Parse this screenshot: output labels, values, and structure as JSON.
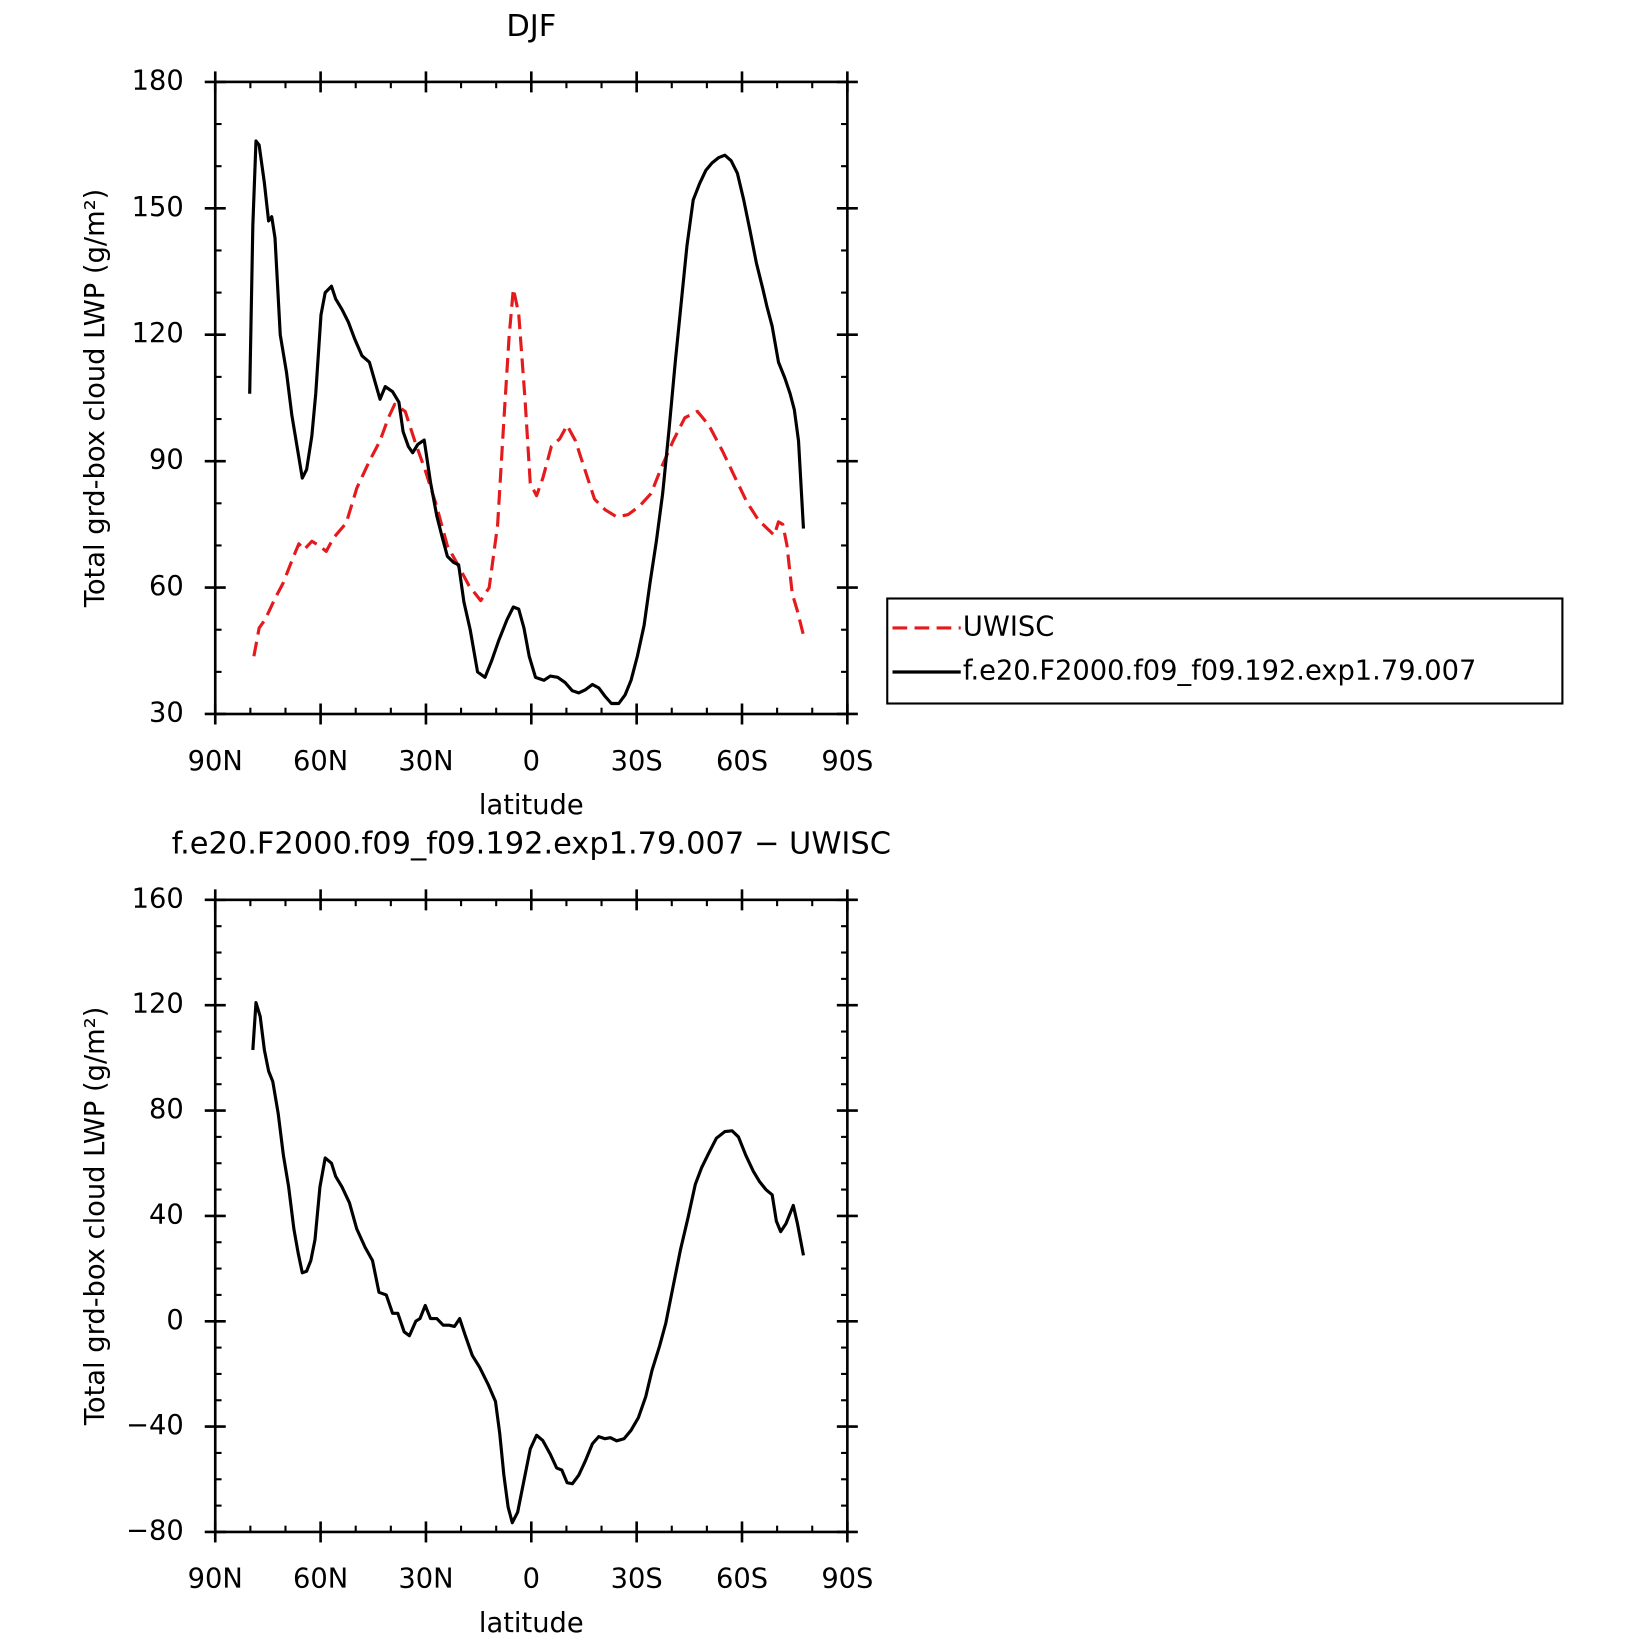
{
  "chart_data": [
    {
      "type": "line",
      "title": "DJF",
      "xlabel": "latitude",
      "ylabel": "Total grd-box cloud LWP (g/m²)",
      "xlim": [
        90,
        -90
      ],
      "xticks": [
        {
          "value": 90,
          "label": "90N"
        },
        {
          "value": 60,
          "label": "60N"
        },
        {
          "value": 30,
          "label": "30N"
        },
        0,
        {
          "value": -30,
          "label": "30S"
        },
        {
          "value": -60,
          "label": "60S"
        },
        {
          "value": -90,
          "label": "90S"
        }
      ],
      "ylim": [
        30,
        180
      ],
      "yticks": [
        30,
        60,
        90,
        120,
        150,
        180
      ],
      "legend": "right",
      "series": [
        {
          "name": "UWISC",
          "color": "#e41a1c",
          "linestyle": "dashed",
          "x": [
            79,
            77.5,
            75.8,
            73,
            70.7,
            67.7,
            66.2,
            64.7,
            62.5,
            60.5,
            58.4,
            56.3,
            52.7,
            49.7,
            46.1,
            43.1,
            40.7,
            38.9,
            35.9,
            33.2,
            30.2,
            27.2,
            23.9,
            20.6,
            17.7,
            14.4,
            12,
            9.6,
            7.8,
            6.3,
            5.1,
            3.6,
            1.8,
            0.3,
            -1.5,
            -3.3,
            -5.7,
            -8.1,
            -10.2,
            -12.6,
            -15,
            -18,
            -21,
            -24.3,
            -27.5,
            -30.8,
            -34.1,
            -37.1,
            -40.4,
            -43.7,
            -47.3,
            -50.6,
            -54.5,
            -58.1,
            -61.4,
            -64.7,
            -67.7,
            -69.2,
            -70.4,
            -71.6,
            -72.8,
            -74.3,
            -75.8,
            -77.5
          ],
          "values": [
            43.7,
            50.4,
            52.4,
            57.4,
            61,
            67.4,
            70.4,
            69,
            71,
            70,
            68.6,
            71.8,
            75.3,
            83.6,
            90,
            94.8,
            100.3,
            103.5,
            101.8,
            94.8,
            87.8,
            80,
            69.9,
            64.9,
            60.4,
            56.9,
            60,
            74.8,
            99.8,
            119.7,
            130.9,
            125,
            104.8,
            84.8,
            81.8,
            86,
            93.5,
            95.3,
            98.5,
            94.8,
            88.6,
            81,
            78.5,
            76.8,
            77.3,
            79.3,
            82.3,
            88.6,
            94.8,
            100.3,
            101.8,
            98.5,
            92.3,
            86,
            80.3,
            76,
            73.6,
            72.4,
            75.6,
            75,
            70,
            58.6,
            54.4,
            48.7
          ]
        },
        {
          "name": "f.e20.F2000.f09_f09.192.exp1.79.007",
          "color": "#000000",
          "linestyle": "solid",
          "x": [
            80.2,
            79.3,
            78.4,
            77.5,
            76,
            74.8,
            73.9,
            73,
            71.5,
            69.7,
            68.2,
            66.7,
            65.2,
            64,
            62.5,
            61.4,
            59.9,
            58.7,
            56.9,
            55.7,
            53.9,
            52.1,
            50.3,
            48.2,
            46.1,
            44.9,
            43.1,
            41.6,
            39.5,
            37.7,
            36.5,
            35,
            33.8,
            32.3,
            30.5,
            28.7,
            26.9,
            25.4,
            23.9,
            22.2,
            20.7,
            19.2,
            17.4,
            15.3,
            13.2,
            11.4,
            9.3,
            6.9,
            5.1,
            3.6,
            2.1,
            0.6,
            -1.2,
            -3.6,
            -5.4,
            -7.5,
            -9.6,
            -11.7,
            -13.5,
            -15.3,
            -17.4,
            -19.2,
            -21,
            -22.8,
            -24.9,
            -26.7,
            -28.4,
            -30.2,
            -32.1,
            -33.8,
            -35.6,
            -37.4,
            -39.2,
            -41,
            -42.8,
            -44.3,
            -46.1,
            -47.9,
            -49.7,
            -51.5,
            -53.3,
            -55.1,
            -56.9,
            -58.7,
            -60.5,
            -62.3,
            -64.1,
            -65.9,
            -67.1,
            -68.6,
            -70.4,
            -72.2,
            -73.7,
            -74.9,
            -76.1,
            -77.5
          ],
          "values": [
            106,
            146,
            166,
            165,
            156,
            147,
            148,
            143,
            120,
            111,
            101,
            93.5,
            86,
            88,
            96,
            106,
            124.7,
            130,
            131.5,
            128.5,
            126,
            123,
            119,
            115,
            113.5,
            110,
            104.7,
            107.7,
            106.5,
            104,
            97,
            93.5,
            92,
            94,
            95,
            85,
            77,
            72,
            67.4,
            66,
            65.4,
            56.6,
            50,
            40,
            38.7,
            42.4,
            47.4,
            52.4,
            55.4,
            54.9,
            50.4,
            43.7,
            38.7,
            38,
            39,
            38.7,
            37.5,
            35.5,
            35,
            35.7,
            37,
            36.2,
            34.2,
            32.5,
            32.5,
            34.5,
            38,
            43.7,
            51,
            61,
            71,
            82.3,
            97.3,
            113.5,
            128.4,
            141,
            152,
            155.8,
            159,
            160.8,
            162,
            162.6,
            161.3,
            158.3,
            152,
            144.6,
            137,
            131,
            126.7,
            122,
            113.5,
            109.7,
            106,
            102.2,
            94.8,
            74
          ]
        }
      ]
    },
    {
      "type": "line",
      "title": "f.e20.F2000.f09_f09.192.exp1.79.007 − UWISC",
      "xlabel": "latitude",
      "ylabel": "Total grd-box cloud LWP (g/m²)",
      "xlim": [
        90,
        -90
      ],
      "xticks": [
        {
          "value": 90,
          "label": "90N"
        },
        {
          "value": 60,
          "label": "60N"
        },
        {
          "value": 30,
          "label": "30N"
        },
        0,
        {
          "value": -30,
          "label": "30S"
        },
        {
          "value": -60,
          "label": "60S"
        },
        {
          "value": -90,
          "label": "90S"
        }
      ],
      "ylim": [
        -80,
        160
      ],
      "yticks": [
        {
          "value": -80,
          "label": "−80"
        },
        {
          "value": -40,
          "label": "−40"
        },
        0,
        40,
        80,
        120,
        160
      ],
      "series": [
        {
          "color": "#000000",
          "linestyle": "solid",
          "x": [
            79.3,
            78.4,
            77.2,
            76,
            74.8,
            73.6,
            72.1,
            70.6,
            69.1,
            67.6,
            66.4,
            65.2,
            64,
            62.8,
            61.6,
            60.2,
            58.7,
            56.9,
            55.7,
            53.9,
            51.8,
            49.7,
            47.3,
            45.2,
            43.4,
            41.3,
            39.5,
            38,
            36.2,
            34.7,
            32.9,
            31.7,
            30.2,
            28.7,
            26.9,
            25.1,
            23.4,
            21.9,
            20.4,
            18.9,
            16.8,
            14.7,
            12.3,
            10.2,
            9,
            7.8,
            6.6,
            5.4,
            3.9,
            2.1,
            0.3,
            -1.5,
            -3.3,
            -5.4,
            -7.2,
            -8.7,
            -10.2,
            -11.7,
            -13.5,
            -15.3,
            -17.4,
            -19.2,
            -21,
            -22.5,
            -24.3,
            -26.4,
            -28.4,
            -30.5,
            -32.6,
            -34.4,
            -36.5,
            -38.3,
            -40.4,
            -42.5,
            -44.6,
            -46.7,
            -48.5,
            -50.6,
            -52.7,
            -55.1,
            -57.2,
            -59,
            -61.1,
            -63.2,
            -65,
            -66.8,
            -68.6,
            -69.8,
            -71,
            -72.5,
            -74.6,
            -75.8,
            -77.5
          ],
          "values": [
            103,
            121,
            115.7,
            103,
            95,
            91,
            79,
            63,
            51,
            35,
            26,
            18.4,
            19,
            23,
            31,
            51,
            62,
            60,
            55,
            51,
            45,
            35,
            28,
            23,
            11,
            10,
            3,
            3,
            -4,
            -5.5,
            0,
            1,
            6,
            1,
            1,
            -1.5,
            -1.5,
            -2,
            1,
            -5,
            -13,
            -17.5,
            -24,
            -30.5,
            -42.5,
            -58.5,
            -70.5,
            -76.5,
            -72.5,
            -60.5,
            -48.5,
            -43.3,
            -45.3,
            -50.5,
            -55.7,
            -56.5,
            -61.3,
            -61.7,
            -58.5,
            -53.3,
            -46.5,
            -43.8,
            -44.6,
            -44.2,
            -45.4,
            -44.6,
            -41.4,
            -36.6,
            -28.6,
            -18.6,
            -9.5,
            -0.7,
            13.3,
            27.2,
            39.2,
            52,
            58.3,
            64,
            69.5,
            72,
            72.3,
            70,
            63,
            57,
            53,
            50,
            48,
            38,
            34,
            37,
            44,
            37,
            25
          ]
        }
      ]
    }
  ]
}
